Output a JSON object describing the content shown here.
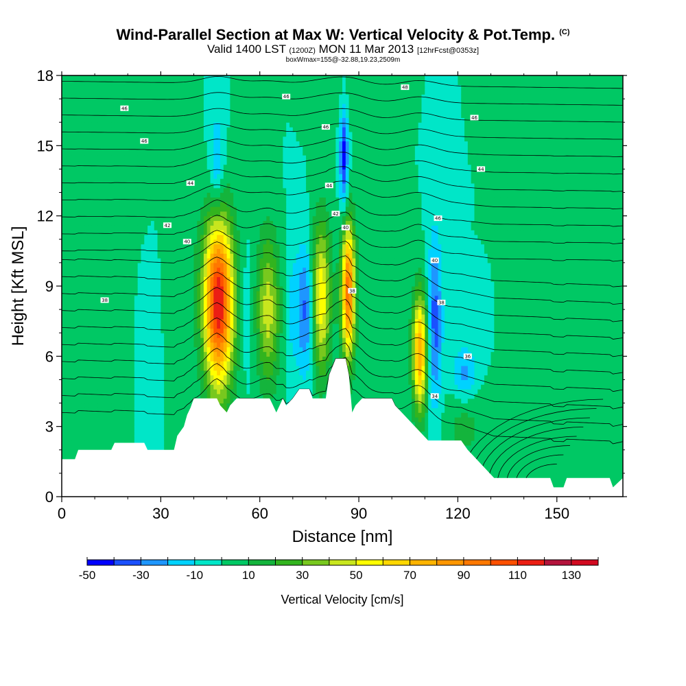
{
  "header": {
    "title": "Wind-Parallel Section at Max W: Vertical Velocity & Pot.Temp.",
    "title_mark": "(C)",
    "valid_prefix": "Valid 1400 LST",
    "valid_zulu": "(1200Z)",
    "valid_date": "MON 11 Mar 2013",
    "forecast": "[12hrFcst@0353z]",
    "box_info": "boxWmax=155@-32.88,19.23,2509m"
  },
  "chart_data": {
    "type": "heatmap",
    "title": "Wind-Parallel Section at Max W: Vertical Velocity & Pot.Temp.",
    "xlabel": "Distance [nm]",
    "ylabel": "Height [Kft MSL]",
    "xlim": [
      0,
      170
    ],
    "ylim": [
      0,
      18
    ],
    "x_ticks": [
      0,
      30,
      60,
      90,
      120,
      150
    ],
    "y_ticks": [
      0,
      3,
      6,
      9,
      12,
      15,
      18
    ],
    "x_tick_labels": [
      "0",
      "30",
      "60",
      "90",
      "120",
      "150"
    ],
    "y_tick_labels": [
      "0",
      "3",
      "6",
      "9",
      "12",
      "15",
      "18"
    ],
    "background_value": 0,
    "updrafts": [
      {
        "x": 47.5,
        "y": 8.3,
        "peak": 120,
        "sx": 3.2,
        "sy": 2.6
      },
      {
        "x": 62.5,
        "y": 8.0,
        "peak": 45,
        "sx": 2.5,
        "sy": 2.3
      },
      {
        "x": 78.5,
        "y": 8.5,
        "peak": 60,
        "sx": 2.1,
        "sy": 2.3
      },
      {
        "x": 86.8,
        "y": 8.8,
        "peak": 95,
        "sx": 1.5,
        "sy": 2.1
      },
      {
        "x": 108.5,
        "y": 6.2,
        "peak": 80,
        "sx": 1.6,
        "sy": 1.8
      },
      {
        "x": 16,
        "y": 10.0,
        "peak": 8,
        "sx": 4.0,
        "sy": 4.0
      },
      {
        "x": 37,
        "y": 10.0,
        "peak": 8,
        "sx": 2.5,
        "sy": 3.0
      },
      {
        "x": 86,
        "y": 17.0,
        "peak": 6,
        "sx": 6.0,
        "sy": 1.0
      },
      {
        "x": 122,
        "y": 3.2,
        "peak": 15,
        "sx": 4.0,
        "sy": 1.2
      },
      {
        "x": 163,
        "y": 1.5,
        "peak": 10,
        "sx": 5.0,
        "sy": 1.0
      }
    ],
    "downdrafts": [
      {
        "x": 47.0,
        "y": 14.0,
        "peak": -25,
        "sx": 1.6,
        "sy": 1.6
      },
      {
        "x": 74.0,
        "y": 8.0,
        "peak": -35,
        "sx": 2.0,
        "sy": 2.0
      },
      {
        "x": 85.5,
        "y": 14.5,
        "peak": -45,
        "sx": 0.9,
        "sy": 1.6
      },
      {
        "x": 113.0,
        "y": 7.5,
        "peak": -35,
        "sx": 1.6,
        "sy": 2.6
      },
      {
        "x": 122.0,
        "y": 5.2,
        "peak": -25,
        "sx": 2.6,
        "sy": 0.9
      },
      {
        "x": 56.0,
        "y": 8.0,
        "peak": -8,
        "sx": 1.5,
        "sy": 2.0
      },
      {
        "x": 69.5,
        "y": 8.0,
        "peak": -10,
        "sx": 1.5,
        "sy": 2.5
      },
      {
        "x": 25.0,
        "y": 6.5,
        "peak": -8,
        "sx": 2.0,
        "sy": 2.0
      }
    ],
    "terrain": [
      [
        0,
        1.6
      ],
      [
        4,
        1.6
      ],
      [
        5,
        2.0
      ],
      [
        15,
        2.0
      ],
      [
        16,
        2.3
      ],
      [
        25,
        2.3
      ],
      [
        26,
        2.0
      ],
      [
        34,
        2.0
      ],
      [
        35,
        2.6
      ],
      [
        37,
        3.0
      ],
      [
        38,
        3.5
      ],
      [
        39,
        3.8
      ],
      [
        40,
        4.2
      ],
      [
        47,
        4.2
      ],
      [
        48,
        3.9
      ],
      [
        50,
        3.6
      ],
      [
        51,
        3.9
      ],
      [
        53,
        4.2
      ],
      [
        63,
        4.2
      ],
      [
        64,
        3.9
      ],
      [
        65,
        3.6
      ],
      [
        66,
        3.9
      ],
      [
        67,
        4.2
      ],
      [
        68,
        3.9
      ],
      [
        70,
        4.2
      ],
      [
        72,
        4.6
      ],
      [
        75,
        4.6
      ],
      [
        76,
        4.2
      ],
      [
        80,
        4.2
      ],
      [
        81,
        5.2
      ],
      [
        83,
        5.9
      ],
      [
        86,
        5.9
      ],
      [
        87,
        5.2
      ],
      [
        88,
        3.6
      ],
      [
        89,
        3.9
      ],
      [
        91,
        4.2
      ],
      [
        100,
        4.2
      ],
      [
        101,
        3.9
      ],
      [
        103,
        3.6
      ],
      [
        105,
        3.3
      ],
      [
        107,
        3.0
      ],
      [
        109,
        2.7
      ],
      [
        111,
        2.4
      ],
      [
        121,
        2.4
      ],
      [
        123,
        2.0
      ],
      [
        125,
        1.7
      ],
      [
        127,
        1.4
      ],
      [
        129,
        1.1
      ],
      [
        131,
        0.8
      ],
      [
        148,
        0.8
      ],
      [
        149,
        0.4
      ],
      [
        152,
        0.4
      ],
      [
        153,
        0.8
      ],
      [
        166,
        0.8
      ],
      [
        167,
        0.4
      ],
      [
        170,
        0.8
      ]
    ],
    "theta_labels": [
      {
        "text": "46",
        "x": 19,
        "y": 16.6
      },
      {
        "text": "46",
        "x": 68,
        "y": 17.1
      },
      {
        "text": "48",
        "x": 104,
        "y": 17.5
      },
      {
        "text": "46",
        "x": 80,
        "y": 15.8
      },
      {
        "text": "46",
        "x": 125,
        "y": 16.2
      },
      {
        "text": "46",
        "x": 25,
        "y": 15.2
      },
      {
        "text": "44",
        "x": 39,
        "y": 13.4
      },
      {
        "text": "44",
        "x": 81,
        "y": 13.3
      },
      {
        "text": "44",
        "x": 127,
        "y": 14.0
      },
      {
        "text": "42",
        "x": 32,
        "y": 11.6
      },
      {
        "text": "42",
        "x": 83,
        "y": 12.1
      },
      {
        "text": "40",
        "x": 38,
        "y": 10.9
      },
      {
        "text": "40",
        "x": 86,
        "y": 11.5
      },
      {
        "text": "46",
        "x": 114,
        "y": 11.9
      },
      {
        "text": "40",
        "x": 113,
        "y": 10.1
      },
      {
        "text": "38",
        "x": 13,
        "y": 8.4
      },
      {
        "text": "38",
        "x": 88,
        "y": 8.8
      },
      {
        "text": "38",
        "x": 115,
        "y": 8.3
      },
      {
        "text": "36",
        "x": 123,
        "y": 6.0
      },
      {
        "text": "34",
        "x": 113,
        "y": 4.3
      }
    ]
  },
  "colorbar": {
    "title": "Vertical Velocity [cm/s]",
    "bounds": [
      -50,
      140
    ],
    "step": 10,
    "tick_labels": [
      "-50",
      "-30",
      "-10",
      "10",
      "30",
      "50",
      "70",
      "90",
      "110",
      "130"
    ],
    "colors": [
      "#0000ff",
      "#1a50ff",
      "#1e96ff",
      "#00d2ff",
      "#00e6c8",
      "#00c864",
      "#14b43c",
      "#32b41e",
      "#78c81e",
      "#c8e61e",
      "#ffff00",
      "#ffd700",
      "#ffb400",
      "#ff9600",
      "#ff7800",
      "#ff5000",
      "#eb1e14",
      "#b4143c",
      "#d20a20"
    ]
  }
}
